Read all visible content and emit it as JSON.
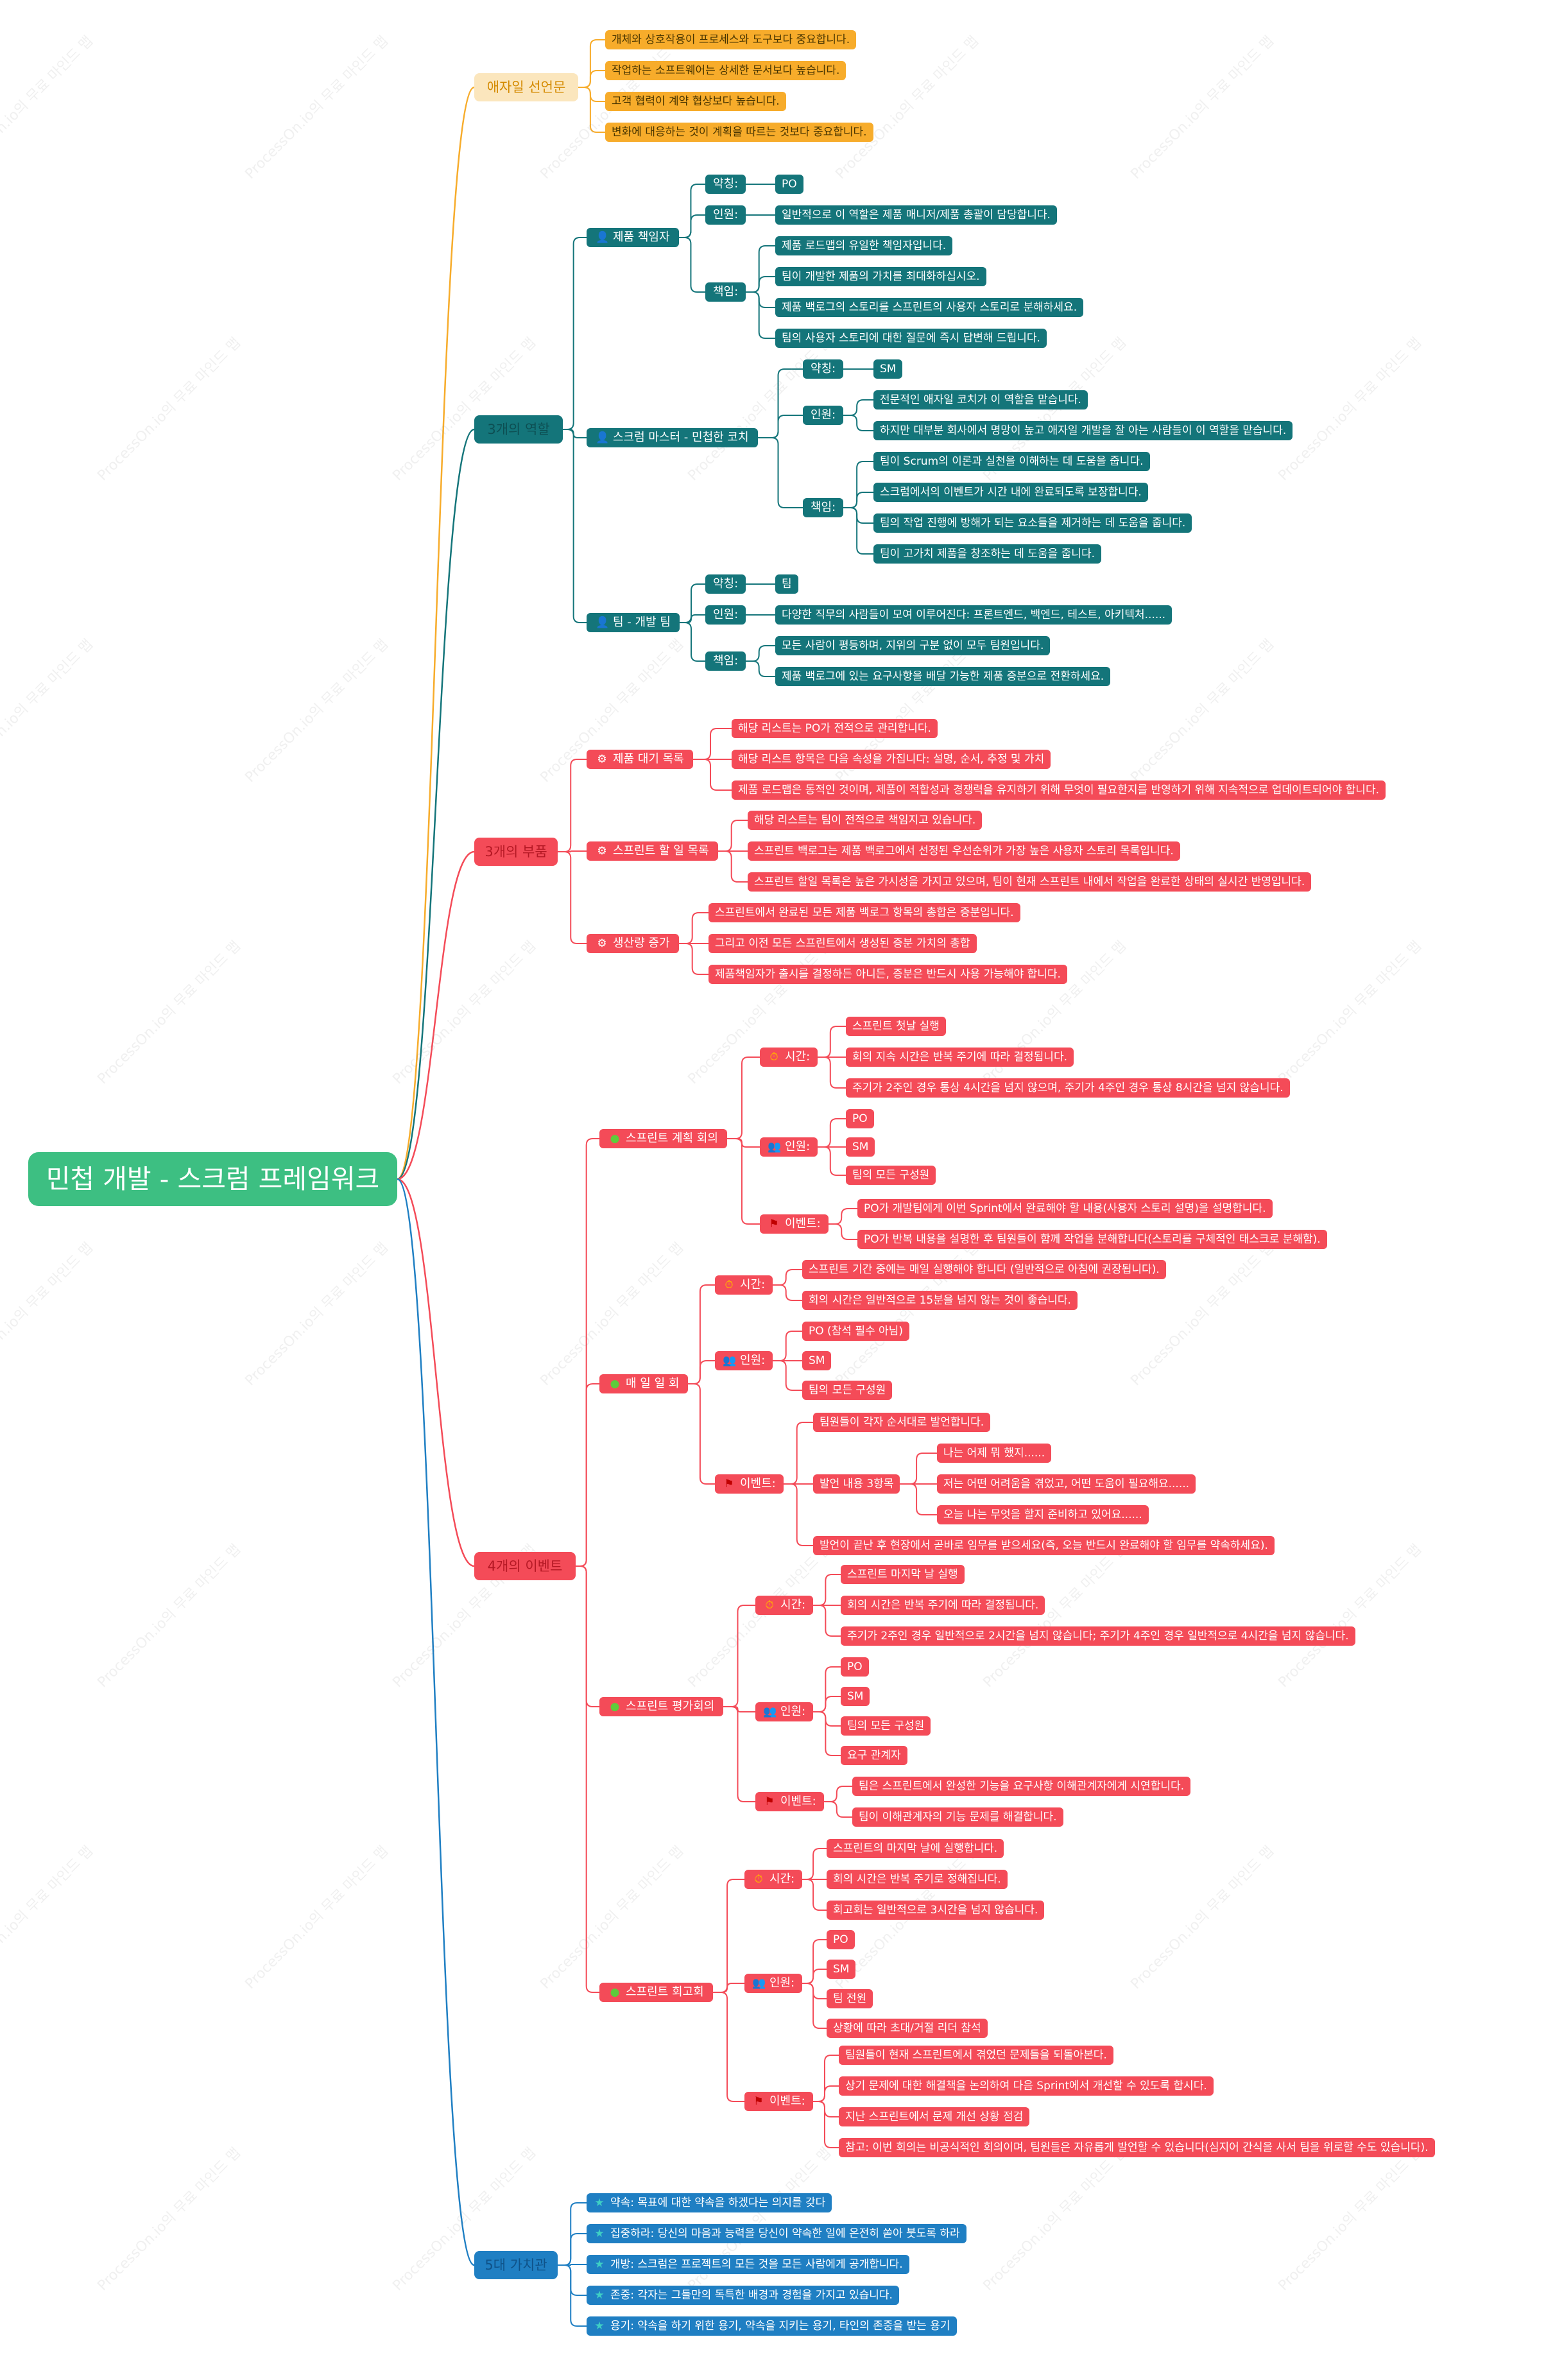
{
  "root": "민첩 개발 - 스크럼 프레임워크",
  "watermark": "ProcessOn.io의 무료 마인드 맵",
  "colors": {
    "agile": "#f7ac2b",
    "teal": "#14757a",
    "red": "#f44b58",
    "blue": "#1f7fc3",
    "root": "#3dbf82"
  },
  "icons": {
    "person_blue": "person-icon",
    "person_red": "person-icon",
    "person_yellow": "person-icon",
    "gear": "gear-icon",
    "clock": "clock-icon",
    "people": "people-icon",
    "flag": "flag-icon",
    "green_dot": "dot-icon",
    "star": "star-icon"
  },
  "agile": {
    "title": "애자일 선언문",
    "items": [
      "개체와 상호작용이 프로세스와 도구보다 중요합니다.",
      "작업하는 소프트웨어는 상세한 문서보다 높습니다.",
      "고객 협력이 계약 협상보다 높습니다.",
      "변화에 대응하는 것이 계획을 따르는 것보다 중요합니다."
    ]
  },
  "roles": {
    "title": "3개의 역할",
    "po": {
      "title": "제품 책임자",
      "labels": [
        "약칭:",
        "인원:",
        "책임:"
      ],
      "abbr": "PO",
      "staff": "일반적으로 이 역할은 제품 매니저/제품 총괄이 담당합니다.",
      "duties": [
        "제품 로드맵의 유일한 책임자입니다.",
        "팀이 개발한 제품의 가치를 최대화하십시오.",
        "제품 백로그의 스토리를 스프린트의 사용자 스토리로 분해하세요.",
        "팀의 사용자 스토리에 대한 질문에 즉시 답변해 드립니다."
      ]
    },
    "sm": {
      "title": "스크럼 마스터 - 민첩한 코치",
      "labels": [
        "약칭:",
        "인원:",
        "책임:"
      ],
      "abbr": "SM",
      "staff": [
        "전문적인 애자일 코치가 이 역할을 맡습니다.",
        "하지만 대부분 회사에서 명망이 높고 애자일 개발을 잘 아는 사람들이 이 역할을 맡습니다."
      ],
      "duties": [
        "팀이 Scrum의 이론과 실천을 이해하는 데 도움을 줍니다.",
        "스크럼에서의 이벤트가 시간 내에 완료되도록 보장합니다.",
        "팀의 작업 진행에 방해가 되는 요소들을 제거하는 데 도움을 줍니다.",
        "팀이 고가치 제품을 창조하는 데 도움을 줍니다."
      ]
    },
    "team": {
      "title": "팀 - 개발 팀",
      "labels": [
        "약칭:",
        "인원:",
        "책임:"
      ],
      "abbr": "팀",
      "staff": "다양한 직무의 사람들이 모여 이루어진다: 프론트엔드, 백엔드, 테스트, 아키텍처......",
      "duties": [
        "모든 사람이 평등하며, 지위의 구분 없이 모두 팀원입니다.",
        "제품 백로그에 있는 요구사항을 배달 가능한 제품 증분으로 전환하세요."
      ]
    }
  },
  "artifacts": {
    "title": "3개의 부품",
    "groups": [
      {
        "title": "제품 대기 목록",
        "items": [
          "해당 리스트는 PO가 전적으로 관리합니다.",
          "해당 리스트 항목은 다음 속성을 가집니다: 설명, 순서, 추정 및 가치",
          "제품 로드맵은 동적인 것이며, 제품이 적합성과 경쟁력을 유지하기 위해 무엇이 필요한지를 반영하기 위해 지속적으로 업데이트되어야 합니다."
        ]
      },
      {
        "title": "스프린트 할 일 목록",
        "items": [
          "해당 리스트는 팀이 전적으로 책임지고 있습니다.",
          "스프린트 백로그는 제품 백로그에서 선정된 우선순위가 가장 높은 사용자 스토리 목록입니다.",
          "스프린트 할일 목록은 높은 가시성을 가지고 있으며, 팀이 현재 스프린트 내에서 작업을 완료한 상태의 실시간 반영입니다."
        ]
      },
      {
        "title": "생산량 증가",
        "items": [
          "스프린트에서 완료된 모든 제품 백로그 항목의 총합은 증분입니다.",
          "그리고 이전 모든 스프린트에서 생성된 증분 가치의 총합",
          "제품책임자가 출시를 결정하든 아니든, 증분은 반드시 사용 가능해야 합니다."
        ]
      }
    ]
  },
  "events": {
    "title": "4개의 이벤트",
    "planning": {
      "title": "스프린트 계획 회의",
      "labels": [
        "시간:",
        "인원:",
        "이벤트:"
      ],
      "time": [
        "스프린트 첫날 실행",
        "회의 지속 시간은 반복 주기에 따라 결정됩니다.",
        "주기가 2주인 경우 통상 4시간을 넘지 않으며, 주기가 4주인 경우 통상 8시간을 넘지 않습니다."
      ],
      "people": [
        "PO",
        "SM",
        "팀의 모든 구성원"
      ],
      "event": [
        "PO가 개발팀에게 이번 Sprint에서 완료해야 할 내용(사용자 스토리 설명)을 설명합니다.",
        "PO가 반복 내용을 설명한 후 팀원들이 함께 작업을 분해합니다(스토리를 구체적인 태스크로 분해함)."
      ]
    },
    "daily": {
      "title": "매 일 일 회",
      "labels": [
        "시간:",
        "인원:",
        "이벤트:"
      ],
      "time": [
        "스프린트 기간 중에는 매일 실행해야 합니다 (일반적으로 아침에 권장됩니다).",
        "회의 시간은 일반적으로 15분을 넘지 않는 것이 좋습니다."
      ],
      "people": [
        "PO (참석 필수 아님)",
        "SM",
        "팀의 모든 구성원"
      ],
      "event_first": "팀원들이 각자 순서대로 발언합니다.",
      "speech_label": "발언 내용 3항목",
      "speech": [
        "나는 어제 뭐 했지......",
        "저는 어떤 어려움을 겪었고, 어떤 도움이 필요해요......",
        "오늘 나는 무엇을 할지 준비하고 있어요......"
      ],
      "event_last": "발언이 끝난 후 현장에서 곧바로 임무를 받으세요(즉, 오늘 반드시 완료해야 할 임무를 약속하세요)."
    },
    "review": {
      "title": "스프린트 평가회의",
      "labels": [
        "시간:",
        "인원:",
        "이벤트:"
      ],
      "time": [
        "스프린트 마지막 날 실행",
        "회의 시간은 반복 주기에 따라 결정됩니다.",
        "주기가 2주인 경우 일반적으로 2시간을 넘지 않습니다; 주기가 4주인 경우 일반적으로 4시간을 넘지 않습니다."
      ],
      "people": [
        "PO",
        "SM",
        "팀의 모든 구성원",
        "요구 관계자"
      ],
      "event": [
        "팀은 스프린트에서 완성한 기능을 요구사항 이해관계자에게 시연합니다.",
        "팀이 이해관계자의 기능 문제를 해결합니다."
      ]
    },
    "retro": {
      "title": "스프린트 회고회",
      "labels": [
        "시간:",
        "인원:",
        "이벤트:"
      ],
      "time": [
        "스프린트의 마지막 날에 실행합니다.",
        "회의 시간은 반복 주기로 정해집니다.",
        "회고회는 일반적으로 3시간을 넘지 않습니다."
      ],
      "people": [
        "PO",
        "SM",
        "팀 전원",
        "상황에 따라 초대/거절 리더 참석"
      ],
      "event": [
        "팀원들이 현재 스프린트에서 겪었던 문제들을 되돌아본다.",
        "상기 문제에 대한 해결책을 논의하여 다음 Sprint에서 개선할 수 있도록 합시다.",
        "지난 스프린트에서 문제 개선 상황 점검",
        "참고: 이번 회의는 비공식적인 회의이며, 팀원들은 자유롭게 발언할 수 있습니다(심지어 간식을 사서 팀을 위로할 수도 있습니다)."
      ]
    }
  },
  "values": {
    "title": "5대 가치관",
    "items": [
      "약속: 목표에 대한 약속을 하겠다는 의지를 갖다",
      "집중하라: 당신의 마음과 능력을 당신이 약속한 일에 온전히 쏟아 붓도록 하라",
      "개방: 스크럼은 프로젝트의 모든 것을 모든 사람에게 공개합니다.",
      "존중: 각자는 그들만의 독특한 배경과 경험을 가지고 있습니다.",
      "용기: 약속을 하기 위한 용기, 약속을 지키는 용기, 타인의 존중을 받는 용기"
    ]
  }
}
